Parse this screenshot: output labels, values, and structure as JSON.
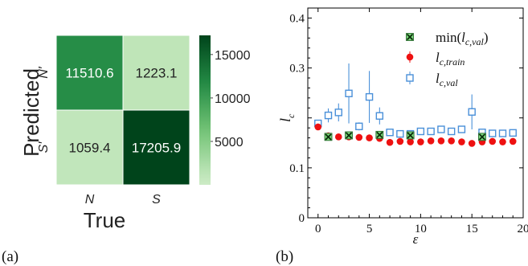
{
  "chart_data": [
    {
      "type": "heatmap",
      "panel_label": "(a)",
      "xlabel": "True",
      "ylabel": "Predicted",
      "x_categories": [
        "N",
        "S"
      ],
      "y_categories": [
        "N′",
        "S′"
      ],
      "values": [
        [
          11510.6,
          1223.1
        ],
        [
          1059.4,
          17205.9
        ]
      ],
      "value_labels": [
        [
          "11510.6",
          "1223.1"
        ],
        [
          "1059.4",
          "17205.9"
        ]
      ],
      "colorbar": {
        "min": 0,
        "max": 17205.9,
        "ticks": [
          5000,
          10000,
          15000
        ],
        "tick_labels": [
          "5000",
          "10000",
          "15000"
        ],
        "palette": [
          "#f7fcf5",
          "#c7e9c0",
          "#74c476",
          "#238b45",
          "#00441b"
        ]
      }
    },
    {
      "type": "scatter",
      "panel_label": "(b)",
      "xlabel": "ε",
      "ylabel": "l",
      "ylabel_sub": "c",
      "xlim": [
        -1,
        20
      ],
      "ylim": [
        0,
        0.42
      ],
      "xticks": [
        0,
        5,
        10,
        15,
        20
      ],
      "yticks": [
        0,
        0.1,
        0.2,
        0.3,
        0.4
      ],
      "ytick_labels": [
        "0",
        "0.1",
        "",
        "0.3",
        "0.4"
      ],
      "legend_position": "top-right",
      "series": [
        {
          "name": "min(l_c,val)",
          "marker": "x-square",
          "color": "#2e7d32",
          "x": [
            1,
            3,
            6,
            9,
            16
          ],
          "y": [
            0.162,
            0.165,
            0.166,
            0.165,
            0.162
          ]
        },
        {
          "name": "l_c,train",
          "marker": "circle",
          "color": "#ee1111",
          "x": [
            0,
            1,
            2,
            3,
            4,
            5,
            6,
            7,
            8,
            9,
            10,
            11,
            12,
            13,
            14,
            15,
            16,
            17,
            18,
            19
          ],
          "y": [
            0.182,
            0.164,
            0.162,
            0.162,
            0.161,
            0.16,
            0.159,
            0.151,
            0.153,
            0.152,
            0.152,
            0.154,
            0.154,
            0.154,
            0.152,
            0.149,
            0.152,
            0.153,
            0.152,
            0.153
          ]
        },
        {
          "name": "l_c,val",
          "marker": "open-square",
          "color": "#4a90d9",
          "x": [
            0,
            1,
            2,
            3,
            4,
            5,
            6,
            7,
            8,
            9,
            10,
            11,
            12,
            13,
            14,
            15,
            16,
            17,
            18,
            19
          ],
          "y": [
            0.189,
            0.205,
            0.211,
            0.249,
            0.183,
            0.242,
            0.204,
            0.171,
            0.168,
            0.168,
            0.173,
            0.173,
            0.177,
            0.173,
            0.177,
            0.212,
            0.171,
            0.169,
            0.169,
            0.17
          ],
          "yerr": [
            0.003,
            0.014,
            0.018,
            0.06,
            0.008,
            0.052,
            0.017,
            0.004,
            0.004,
            0.004,
            0.003,
            0.003,
            0.004,
            0.003,
            0.003,
            0.035,
            0.004,
            0.003,
            0.003,
            0.002
          ]
        }
      ]
    }
  ]
}
